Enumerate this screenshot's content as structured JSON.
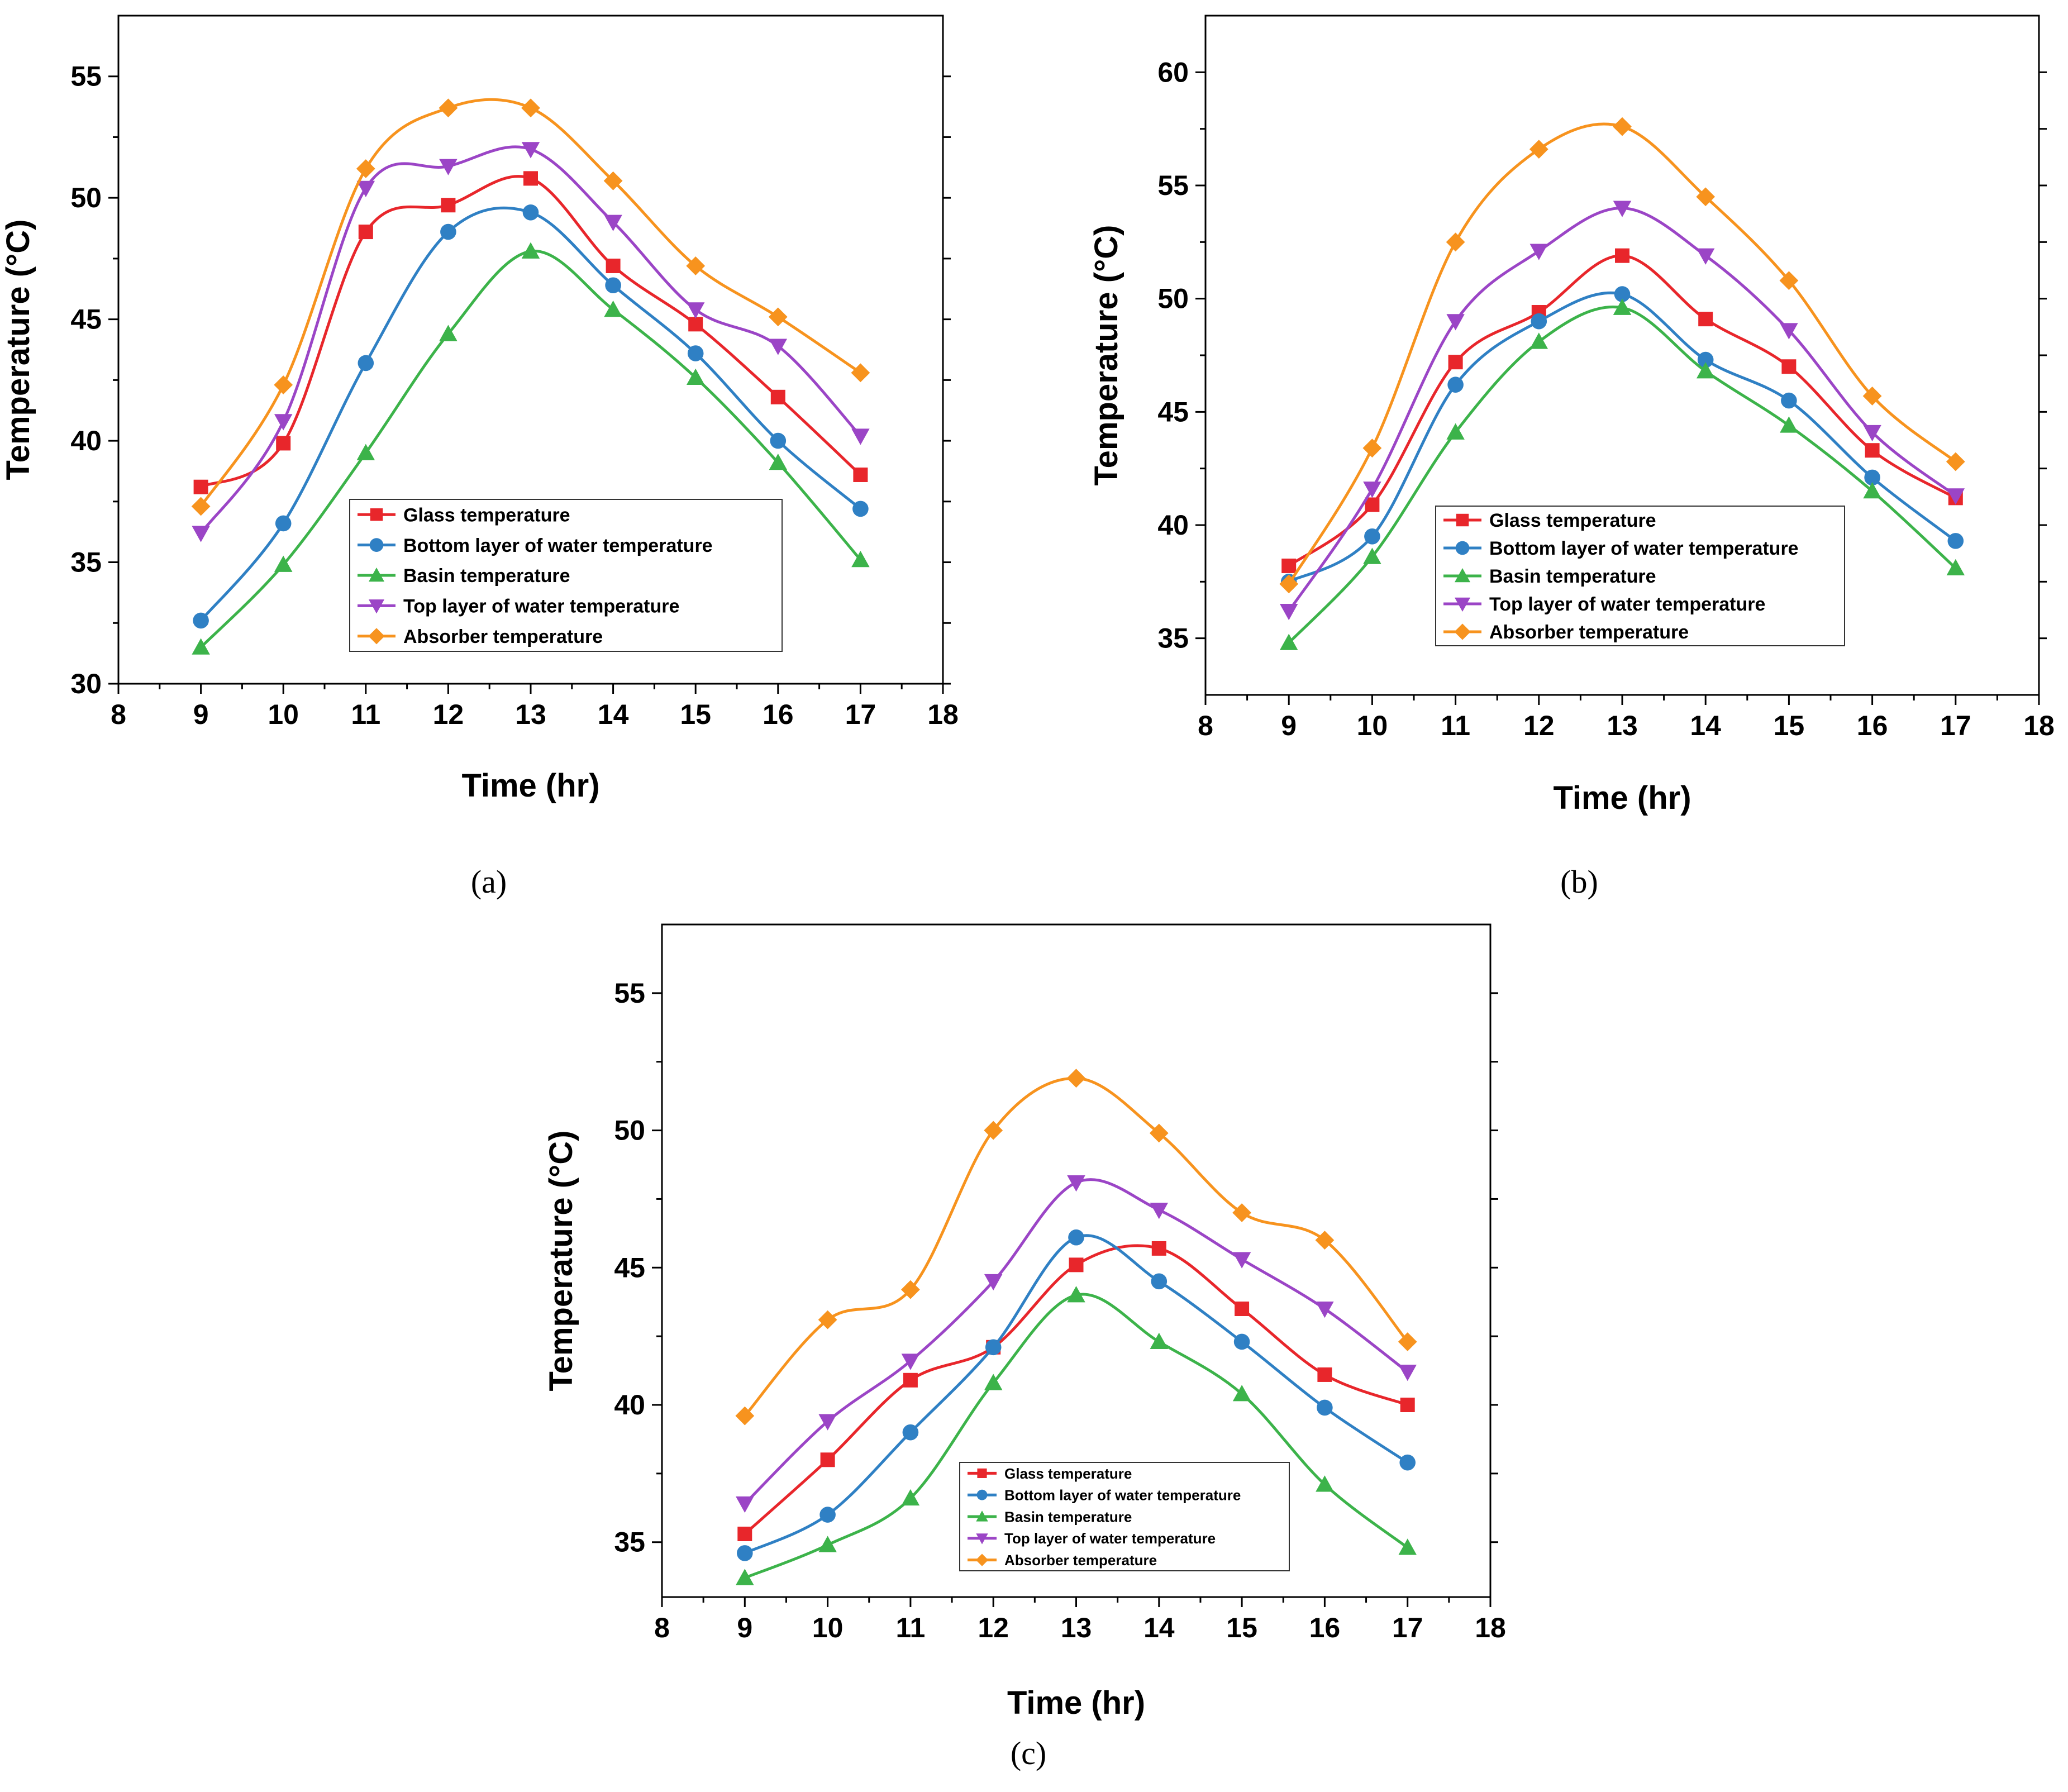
{
  "chart_data": [
    {
      "type": "line",
      "panel_label": "(a)",
      "xlabel": "Time (hr)",
      "ylabel": "Temperature (°C)",
      "xlim": [
        8,
        18
      ],
      "ylim": [
        30,
        57.5
      ],
      "xticks": [
        8,
        9,
        10,
        11,
        12,
        13,
        14,
        15,
        16,
        17,
        18
      ],
      "yticks": [
        30,
        35,
        40,
        45,
        50,
        55
      ],
      "legend_position": "lower-center",
      "x": [
        9,
        10,
        11,
        12,
        13,
        14,
        15,
        16,
        17
      ],
      "series": [
        {
          "name": "Glass temperature",
          "color": "#e8262b",
          "marker": "square",
          "values": [
            38.1,
            39.9,
            48.6,
            49.7,
            50.8,
            47.2,
            44.8,
            41.8,
            38.6
          ]
        },
        {
          "name": "Bottom layer of water temperature",
          "color": "#2f80c4",
          "marker": "circle",
          "values": [
            32.6,
            36.6,
            43.2,
            48.6,
            49.4,
            46.4,
            43.6,
            40.0,
            37.2
          ]
        },
        {
          "name": "Basin temperature",
          "color": "#3cb34a",
          "marker": "triangle-up",
          "values": [
            31.5,
            34.9,
            39.5,
            44.4,
            47.8,
            45.4,
            42.6,
            39.1,
            35.1
          ]
        },
        {
          "name": "Top layer of water temperature",
          "color": "#9b45c6",
          "marker": "triangle-down",
          "values": [
            36.2,
            40.8,
            50.4,
            51.3,
            52.0,
            49.0,
            45.4,
            43.9,
            40.2
          ]
        },
        {
          "name": "Absorber temperature",
          "color": "#f7931e",
          "marker": "diamond",
          "values": [
            37.3,
            42.3,
            51.2,
            53.7,
            53.7,
            50.7,
            47.2,
            45.1,
            42.8
          ]
        }
      ]
    },
    {
      "type": "line",
      "panel_label": "(b)",
      "xlabel": "Time (hr)",
      "ylabel": "Temperature (°C)",
      "xlim": [
        8,
        18
      ],
      "ylim": [
        32.5,
        62.5
      ],
      "xticks": [
        8,
        9,
        10,
        11,
        12,
        13,
        14,
        15,
        16,
        17,
        18
      ],
      "yticks": [
        35,
        40,
        45,
        50,
        55,
        60
      ],
      "legend_position": "lower-center",
      "x": [
        9,
        10,
        11,
        12,
        13,
        14,
        15,
        16,
        17
      ],
      "series": [
        {
          "name": "Glass temperature",
          "color": "#e8262b",
          "marker": "square",
          "values": [
            38.2,
            40.9,
            47.2,
            49.4,
            51.9,
            49.1,
            47.0,
            43.3,
            41.2
          ]
        },
        {
          "name": "Bottom layer of water temperature",
          "color": "#2f80c4",
          "marker": "circle",
          "values": [
            37.5,
            39.5,
            46.2,
            49.0,
            50.2,
            47.3,
            45.5,
            42.1,
            39.3
          ]
        },
        {
          "name": "Basin temperature",
          "color": "#3cb34a",
          "marker": "triangle-up",
          "values": [
            34.8,
            38.6,
            44.1,
            48.1,
            49.6,
            46.8,
            44.4,
            41.5,
            38.1
          ]
        },
        {
          "name": "Top layer of water temperature",
          "color": "#9b45c6",
          "marker": "triangle-down",
          "values": [
            36.2,
            41.6,
            49.0,
            52.1,
            54.0,
            51.9,
            48.6,
            44.1,
            41.3
          ]
        },
        {
          "name": "Absorber temperature",
          "color": "#f7931e",
          "marker": "diamond",
          "values": [
            37.4,
            43.4,
            52.5,
            56.6,
            57.6,
            54.5,
            50.8,
            45.7,
            42.8
          ]
        }
      ]
    },
    {
      "type": "line",
      "panel_label": "(c)",
      "xlabel": "Time (hr)",
      "ylabel": "Temperature (°C)",
      "xlim": [
        8,
        18
      ],
      "ylim": [
        33,
        57.5
      ],
      "xticks": [
        8,
        9,
        10,
        11,
        12,
        13,
        14,
        15,
        16,
        17,
        18
      ],
      "yticks": [
        35,
        40,
        45,
        50,
        55
      ],
      "legend_position": "lower-center",
      "x": [
        9,
        10,
        11,
        12,
        13,
        14,
        15,
        16,
        17
      ],
      "series": [
        {
          "name": "Glass temperature",
          "color": "#e8262b",
          "marker": "square",
          "values": [
            35.3,
            38.0,
            40.9,
            42.1,
            45.1,
            45.7,
            43.5,
            41.1,
            40.0
          ]
        },
        {
          "name": "Bottom layer of water temperature",
          "color": "#2f80c4",
          "marker": "circle",
          "values": [
            34.6,
            36.0,
            39.0,
            42.1,
            46.1,
            44.5,
            42.3,
            39.9,
            37.9
          ]
        },
        {
          "name": "Basin temperature",
          "color": "#3cb34a",
          "marker": "triangle-up",
          "values": [
            33.7,
            34.9,
            36.6,
            40.8,
            44.0,
            42.3,
            40.4,
            37.1,
            34.8
          ]
        },
        {
          "name": "Top layer of water temperature",
          "color": "#9b45c6",
          "marker": "triangle-down",
          "values": [
            36.4,
            39.4,
            41.6,
            44.5,
            48.1,
            47.1,
            45.3,
            43.5,
            41.2
          ]
        },
        {
          "name": "Absorber temperature",
          "color": "#f7931e",
          "marker": "diamond",
          "values": [
            39.6,
            43.1,
            44.2,
            50.0,
            51.9,
            49.9,
            47.0,
            46.0,
            42.3
          ]
        }
      ]
    }
  ]
}
